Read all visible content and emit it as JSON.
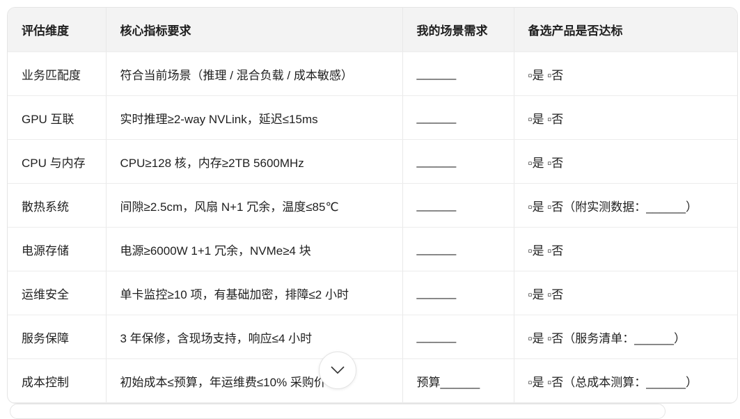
{
  "table": {
    "headers": [
      "评估维度",
      "核心指标要求",
      "我的场景需求",
      "备选产品是否达标"
    ],
    "rows": [
      [
        "业务匹配度",
        "符合当前场景（推理 / 混合负载 / 成本敏感）",
        "______",
        "▫是 ▫否"
      ],
      [
        "GPU 互联",
        "实时推理≥2-way NVLink，延迟≤15ms",
        "______",
        "▫是 ▫否"
      ],
      [
        "CPU 与内存",
        "CPU≥128 核，内存≥2TB 5600MHz",
        "______",
        "▫是 ▫否"
      ],
      [
        "散热系统",
        "间隙≥2.5cm，风扇 N+1 冗余，温度≤85℃",
        "______",
        "▫是 ▫否（附实测数据：______）"
      ],
      [
        "电源存储",
        "电源≥6000W 1+1 冗余，NVMe≥4 块",
        "______",
        "▫是 ▫否"
      ],
      [
        "运维安全",
        "单卡监控≥10 项，有基础加密，排障≤2 小时",
        "______",
        "▫是 ▫否"
      ],
      [
        "服务保障",
        "3 年保修，含现场支持，响应≤4 小时",
        "______",
        "▫是 ▫否（服务清单：______）"
      ],
      [
        "成本控制",
        "初始成本≤预算，年运维费≤10% 采购价",
        "预算______",
        "▫是 ▫否（总成本测算：______）"
      ]
    ]
  },
  "scroll_button": {
    "icon": "chevron-down-icon"
  }
}
